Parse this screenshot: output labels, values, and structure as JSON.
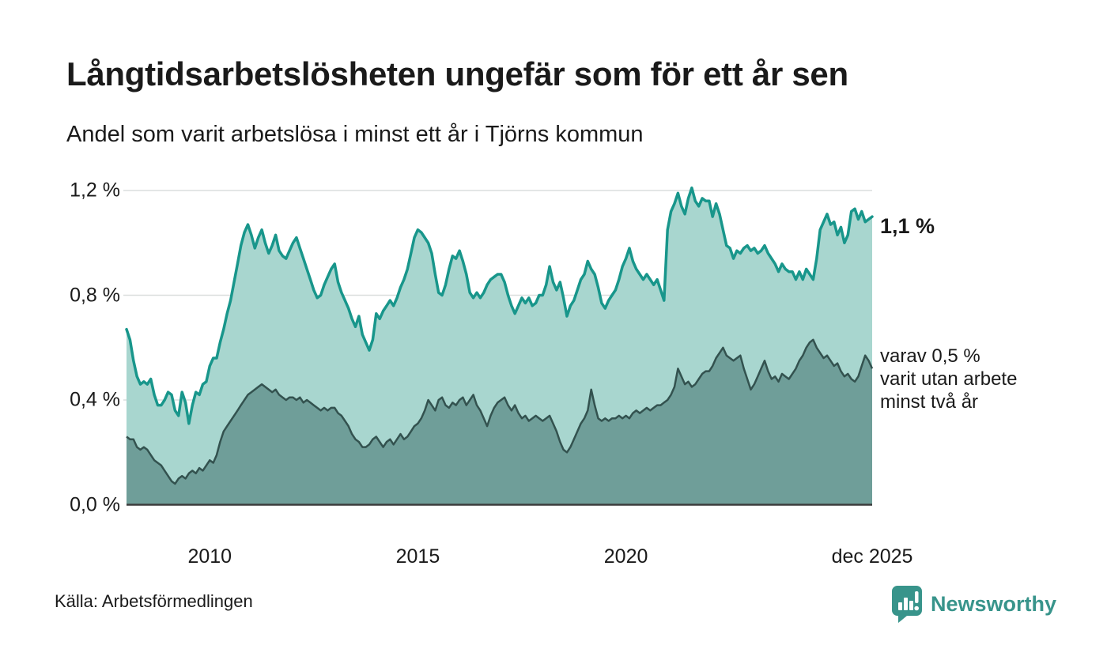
{
  "header": {
    "title": "Långtidsarbetslösheten ungefär som för ett år sen",
    "subtitle": "Andel som varit arbetslösa i minst ett år i Tjörns kommun"
  },
  "annotations": {
    "latest_value": "1,1 %",
    "secondary": "varav 0,5 %\nvarit utan arbete\nminst två år"
  },
  "footer": {
    "source": "Källa: Arbetsförmedlingen",
    "brand": "Newsworthy"
  },
  "colors": {
    "upper_line": "#18968B",
    "upper_fill": "#A8D6CF",
    "lower_line": "#33524F",
    "lower_fill": "#6F9E99",
    "gridline": "#DADEDD",
    "axisline": "#3D3D3D",
    "brand_teal": "#38948B",
    "text": "#1a1a1a"
  },
  "chart_data": {
    "type": "area",
    "title": "Långtidsarbetslösheten ungefär som för ett år sen",
    "subtitle": "Andel som varit arbetslösa i minst ett år i Tjörns kommun",
    "x_start_year": 2008,
    "x_start_month": 1,
    "x_step": "monthly",
    "xlim": [
      2008.0,
      2025.917
    ],
    "ylim": [
      0,
      1.2
    ],
    "grid": "horizontal",
    "legend": "none",
    "yticks": {
      "values": [
        0,
        0.4,
        0.8,
        1.2
      ],
      "labels": [
        "0,0 %",
        "0,4 %",
        "0,8 %",
        "1,2 %"
      ]
    },
    "xticks": {
      "values": [
        2010,
        2015,
        2020,
        2025.917
      ],
      "labels": [
        "2010",
        "2015",
        "2020",
        "dec 2025"
      ]
    },
    "series": [
      {
        "name": "Andel arbetslösa minst ett år",
        "unit": "%",
        "latest_label": "1,1 %",
        "values": [
          0.67,
          0.63,
          0.55,
          0.49,
          0.46,
          0.47,
          0.46,
          0.48,
          0.42,
          0.38,
          0.38,
          0.4,
          0.43,
          0.42,
          0.36,
          0.34,
          0.43,
          0.39,
          0.31,
          0.38,
          0.43,
          0.42,
          0.46,
          0.47,
          0.53,
          0.56,
          0.56,
          0.62,
          0.67,
          0.73,
          0.78,
          0.85,
          0.92,
          0.99,
          1.04,
          1.07,
          1.03,
          0.98,
          1.02,
          1.05,
          1.0,
          0.96,
          0.99,
          1.03,
          0.97,
          0.95,
          0.94,
          0.97,
          1.0,
          1.02,
          0.98,
          0.94,
          0.9,
          0.86,
          0.82,
          0.79,
          0.8,
          0.84,
          0.87,
          0.9,
          0.92,
          0.85,
          0.81,
          0.78,
          0.75,
          0.71,
          0.68,
          0.72,
          0.65,
          0.62,
          0.59,
          0.63,
          0.73,
          0.71,
          0.74,
          0.76,
          0.78,
          0.76,
          0.79,
          0.83,
          0.86,
          0.9,
          0.96,
          1.02,
          1.05,
          1.04,
          1.02,
          1.0,
          0.96,
          0.88,
          0.81,
          0.8,
          0.84,
          0.9,
          0.95,
          0.94,
          0.97,
          0.93,
          0.88,
          0.81,
          0.79,
          0.81,
          0.79,
          0.81,
          0.84,
          0.86,
          0.87,
          0.88,
          0.88,
          0.85,
          0.8,
          0.76,
          0.73,
          0.76,
          0.79,
          0.77,
          0.79,
          0.76,
          0.77,
          0.8,
          0.8,
          0.84,
          0.91,
          0.85,
          0.82,
          0.85,
          0.79,
          0.72,
          0.76,
          0.78,
          0.82,
          0.86,
          0.88,
          0.93,
          0.9,
          0.88,
          0.83,
          0.77,
          0.75,
          0.78,
          0.8,
          0.82,
          0.86,
          0.91,
          0.94,
          0.98,
          0.93,
          0.9,
          0.88,
          0.86,
          0.88,
          0.86,
          0.84,
          0.86,
          0.82,
          0.78,
          1.05,
          1.12,
          1.15,
          1.19,
          1.14,
          1.11,
          1.17,
          1.21,
          1.16,
          1.14,
          1.17,
          1.16,
          1.16,
          1.1,
          1.15,
          1.11,
          1.05,
          0.99,
          0.98,
          0.94,
          0.97,
          0.96,
          0.98,
          0.99,
          0.97,
          0.98,
          0.96,
          0.97,
          0.99,
          0.96,
          0.94,
          0.92,
          0.89,
          0.92,
          0.9,
          0.89,
          0.89,
          0.86,
          0.89,
          0.86,
          0.9,
          0.88,
          0.86,
          0.94,
          1.05,
          1.08,
          1.11,
          1.07,
          1.08,
          1.03,
          1.06,
          1.0,
          1.03,
          1.12,
          1.13,
          1.09,
          1.12,
          1.08,
          1.09,
          1.1
        ]
      },
      {
        "name": "varav utan arbete minst två år",
        "unit": "%",
        "latest_label": "varav 0,5 % varit utan arbete minst två år",
        "values": [
          0.26,
          0.25,
          0.25,
          0.22,
          0.21,
          0.22,
          0.21,
          0.19,
          0.17,
          0.16,
          0.15,
          0.13,
          0.11,
          0.09,
          0.08,
          0.1,
          0.11,
          0.1,
          0.12,
          0.13,
          0.12,
          0.14,
          0.13,
          0.15,
          0.17,
          0.16,
          0.19,
          0.24,
          0.28,
          0.3,
          0.32,
          0.34,
          0.36,
          0.38,
          0.4,
          0.42,
          0.43,
          0.44,
          0.45,
          0.46,
          0.45,
          0.44,
          0.43,
          0.44,
          0.42,
          0.41,
          0.4,
          0.41,
          0.41,
          0.4,
          0.41,
          0.39,
          0.4,
          0.39,
          0.38,
          0.37,
          0.36,
          0.37,
          0.36,
          0.37,
          0.37,
          0.35,
          0.34,
          0.32,
          0.3,
          0.27,
          0.25,
          0.24,
          0.22,
          0.22,
          0.23,
          0.25,
          0.26,
          0.24,
          0.22,
          0.24,
          0.25,
          0.23,
          0.25,
          0.27,
          0.25,
          0.26,
          0.28,
          0.3,
          0.31,
          0.33,
          0.36,
          0.4,
          0.38,
          0.36,
          0.4,
          0.41,
          0.38,
          0.37,
          0.39,
          0.38,
          0.4,
          0.41,
          0.38,
          0.4,
          0.42,
          0.38,
          0.36,
          0.33,
          0.3,
          0.34,
          0.37,
          0.39,
          0.4,
          0.41,
          0.38,
          0.36,
          0.38,
          0.35,
          0.33,
          0.34,
          0.32,
          0.33,
          0.34,
          0.33,
          0.32,
          0.33,
          0.34,
          0.31,
          0.28,
          0.24,
          0.21,
          0.2,
          0.22,
          0.25,
          0.28,
          0.31,
          0.33,
          0.36,
          0.44,
          0.38,
          0.33,
          0.32,
          0.33,
          0.32,
          0.33,
          0.33,
          0.34,
          0.33,
          0.34,
          0.33,
          0.35,
          0.36,
          0.35,
          0.36,
          0.37,
          0.36,
          0.37,
          0.38,
          0.38,
          0.39,
          0.4,
          0.42,
          0.45,
          0.52,
          0.49,
          0.46,
          0.47,
          0.45,
          0.46,
          0.48,
          0.5,
          0.51,
          0.51,
          0.53,
          0.56,
          0.58,
          0.6,
          0.57,
          0.56,
          0.55,
          0.56,
          0.57,
          0.52,
          0.48,
          0.44,
          0.46,
          0.49,
          0.52,
          0.55,
          0.51,
          0.48,
          0.49,
          0.47,
          0.5,
          0.49,
          0.48,
          0.5,
          0.52,
          0.55,
          0.57,
          0.6,
          0.62,
          0.63,
          0.6,
          0.58,
          0.56,
          0.57,
          0.55,
          0.53,
          0.54,
          0.51,
          0.49,
          0.5,
          0.48,
          0.47,
          0.49,
          0.53,
          0.57,
          0.55,
          0.52
        ]
      }
    ]
  }
}
